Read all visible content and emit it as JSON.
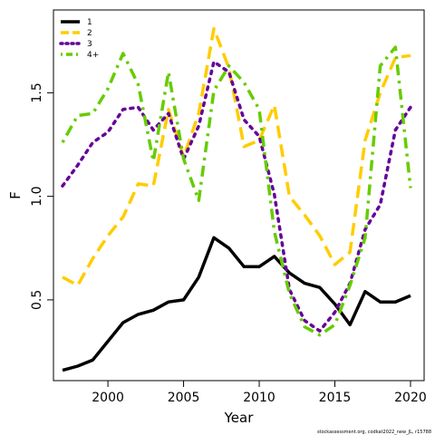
{
  "chart_data": {
    "type": "line",
    "xlabel": "Year",
    "ylabel": "F",
    "xlim": [
      1996.4,
      2020.9
    ],
    "ylim": [
      0.11,
      1.9
    ],
    "xticks": [
      2000,
      2005,
      2010,
      2015,
      2020
    ],
    "yticks": [
      0.5,
      1.0,
      1.5
    ],
    "grid": false,
    "legend_position": "top-left",
    "x": [
      1997,
      1998,
      1999,
      2000,
      2001,
      2002,
      2003,
      2004,
      2005,
      2006,
      2007,
      2008,
      2009,
      2010,
      2011,
      2012,
      2013,
      2014,
      2015,
      2016,
      2017,
      2018,
      2019,
      2020
    ],
    "series": [
      {
        "name": "1",
        "color": "#000000",
        "dash": "solid",
        "values": [
          0.16,
          0.18,
          0.21,
          0.3,
          0.39,
          0.43,
          0.45,
          0.49,
          0.5,
          0.61,
          0.8,
          0.75,
          0.66,
          0.66,
          0.71,
          0.63,
          0.58,
          0.56,
          0.48,
          0.38,
          0.54,
          0.49,
          0.49,
          0.52
        ]
      },
      {
        "name": "2",
        "color": "#FFCC00",
        "dash": "dashed",
        "values": [
          0.61,
          0.57,
          0.7,
          0.81,
          0.9,
          1.06,
          1.05,
          1.42,
          1.19,
          1.4,
          1.81,
          1.62,
          1.24,
          1.27,
          1.44,
          1.0,
          0.91,
          0.81,
          0.67,
          0.73,
          1.27,
          1.5,
          1.67,
          1.68
        ]
      },
      {
        "name": "3",
        "color": "#660099",
        "dash": "dotted",
        "values": [
          1.05,
          1.15,
          1.26,
          1.31,
          1.42,
          1.43,
          1.32,
          1.4,
          1.18,
          1.34,
          1.65,
          1.6,
          1.37,
          1.29,
          1.01,
          0.55,
          0.4,
          0.35,
          0.44,
          0.58,
          0.84,
          0.96,
          1.32,
          1.43
        ]
      },
      {
        "name": "4+",
        "color": "#66CC00",
        "dash": "dotdash",
        "values": [
          1.26,
          1.39,
          1.4,
          1.52,
          1.69,
          1.54,
          1.17,
          1.6,
          1.18,
          0.98,
          1.51,
          1.63,
          1.55,
          1.42,
          0.83,
          0.53,
          0.37,
          0.33,
          0.38,
          0.57,
          0.8,
          1.63,
          1.72,
          1.04
        ]
      }
    ]
  },
  "watermark": "stockassessment.org, codkat2022_new_JL, r15788"
}
